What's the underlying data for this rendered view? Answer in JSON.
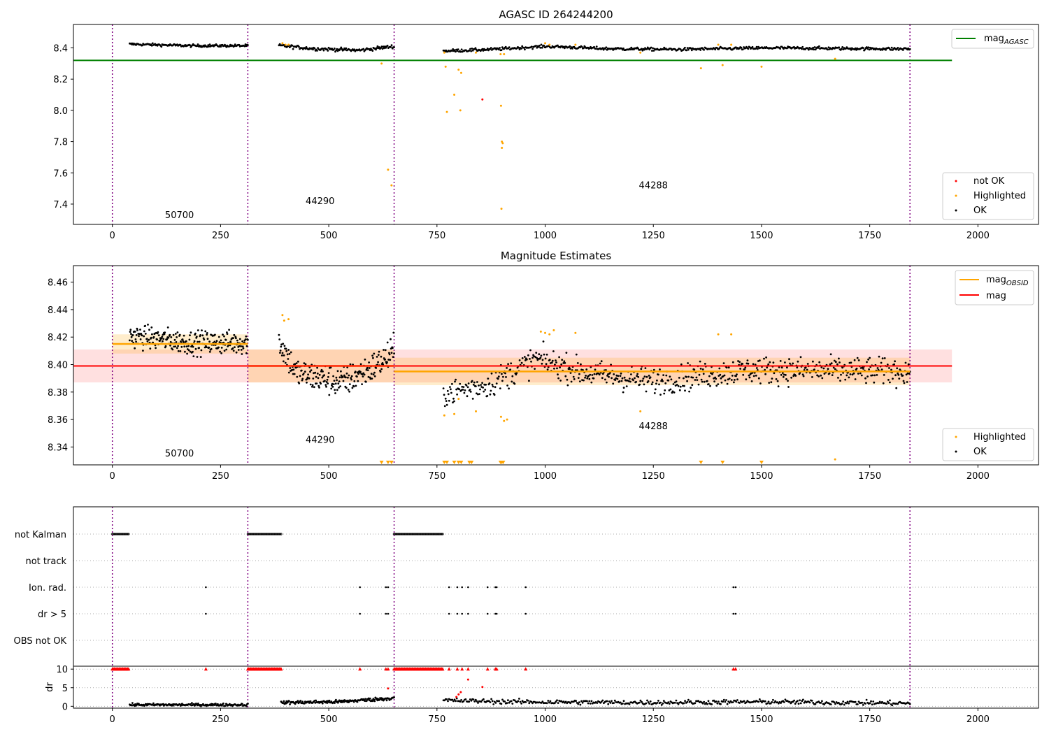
{
  "chart_data": [
    {
      "type": "scatter",
      "title": "AGASC ID 264244200",
      "xlim": [
        -90,
        2140
      ],
      "ylim": [
        7.27,
        8.55
      ],
      "xticks": [
        0,
        250,
        500,
        750,
        1000,
        1250,
        1500,
        1750,
        2000
      ],
      "yticks": [
        7.4,
        7.6,
        7.8,
        8.0,
        8.2,
        8.4
      ],
      "ytick_labels": [
        "7.4",
        "7.6",
        "7.8",
        "8.0",
        "8.2",
        "8.4"
      ],
      "grid": false,
      "legend_upper": {
        "placement": "top-right",
        "entries": [
          {
            "label": "mag",
            "subscript": "AGASC",
            "color": "#008000",
            "marker": "line"
          }
        ]
      },
      "legend_lower": {
        "placement": "bottom-right",
        "entries": [
          {
            "label": "not OK",
            "color": "#ff0000",
            "marker": "dot"
          },
          {
            "label": "Highlighted",
            "color": "#ffa500",
            "marker": "dot"
          },
          {
            "label": "OK",
            "color": "#000000",
            "marker": "dot"
          }
        ]
      },
      "hlines": [
        {
          "name": "mag_AGASC",
          "y": 8.32,
          "x": [
            -90,
            1940
          ],
          "color": "#008000"
        }
      ],
      "vlines": [
        0,
        313,
        651,
        1843
      ],
      "obsid_labels": [
        {
          "text": "50700",
          "x": 155,
          "y": 7.31
        },
        {
          "text": "44290",
          "x": 480,
          "y": 7.4
        },
        {
          "text": "44288",
          "x": 1250,
          "y": 7.5
        }
      ],
      "segments": [
        {
          "x": [
            40,
            313
          ],
          "level": 8.414,
          "wiggle": [
            [
              0.0,
              0.01
            ],
            [
              0.5,
              0.0
            ],
            [
              1.0,
              0.0
            ]
          ],
          "noise": 0.006,
          "n": 150
        },
        {
          "x": [
            385,
            651
          ],
          "level": 8.395,
          "wiggle": [
            [
              0.0,
              0.02
            ],
            [
              0.3,
              0.0
            ],
            [
              0.7,
              -0.01
            ],
            [
              1.0,
              0.015
            ]
          ],
          "noise": 0.008,
          "n": 140
        },
        {
          "x": [
            765,
            1843
          ],
          "level": 8.395,
          "wiggle": [
            [
              0.0,
              -0.015
            ],
            [
              0.1,
              -0.005
            ],
            [
              0.22,
              0.015
            ],
            [
              0.35,
              0.0
            ],
            [
              0.5,
              -0.005
            ],
            [
              0.7,
              0.005
            ],
            [
              1.0,
              -0.002
            ]
          ],
          "noise": 0.007,
          "n": 540
        }
      ],
      "highlighted_points": [
        [
          393,
          8.43
        ],
        [
          400,
          8.42
        ],
        [
          407,
          8.42
        ],
        [
          622,
          8.3
        ],
        [
          637,
          7.62
        ],
        [
          645,
          7.52
        ],
        [
          767,
          8.37
        ],
        [
          770,
          8.28
        ],
        [
          773,
          7.99
        ],
        [
          790,
          8.1
        ],
        [
          800,
          8.26
        ],
        [
          804,
          8.0
        ],
        [
          806,
          8.24
        ],
        [
          840,
          8.37
        ],
        [
          897,
          8.36
        ],
        [
          898,
          8.03
        ],
        [
          900,
          7.8
        ],
        [
          902,
          7.79
        ],
        [
          900,
          7.76
        ],
        [
          899,
          7.37
        ],
        [
          905,
          8.36
        ],
        [
          1000,
          8.43
        ],
        [
          1010,
          8.42
        ],
        [
          1070,
          8.42
        ],
        [
          1220,
          8.37
        ],
        [
          1360,
          8.27
        ],
        [
          1400,
          8.42
        ],
        [
          1410,
          8.29
        ],
        [
          1430,
          8.42
        ],
        [
          1500,
          8.28
        ],
        [
          1670,
          8.33
        ]
      ],
      "not_ok_points": [
        [
          855,
          8.07
        ]
      ]
    },
    {
      "type": "scatter",
      "title": "Magnitude Estimates",
      "xlim": [
        -90,
        2140
      ],
      "ylim": [
        8.327,
        8.472
      ],
      "xticks": [
        0,
        250,
        500,
        750,
        1000,
        1250,
        1500,
        1750,
        2000
      ],
      "yticks": [
        8.34,
        8.36,
        8.38,
        8.4,
        8.42,
        8.44,
        8.46
      ],
      "ytick_labels": [
        "8.34",
        "8.36",
        "8.38",
        "8.40",
        "8.42",
        "8.44",
        "8.46"
      ],
      "grid": false,
      "legend_upper": {
        "placement": "top-right",
        "entries": [
          {
            "label": "mag",
            "subscript": "OBSID",
            "color": "#ffa500",
            "marker": "line"
          },
          {
            "label": "mag",
            "subscript": "",
            "color": "#ff0000",
            "marker": "line"
          }
        ]
      },
      "legend_lower": {
        "placement": "bottom-right",
        "entries": [
          {
            "label": "Highlighted",
            "color": "#ffa500",
            "marker": "dot"
          },
          {
            "label": "OK",
            "color": "#000000",
            "marker": "dot"
          }
        ]
      },
      "mag_band": {
        "x": [
          -90,
          1940
        ],
        "y": 8.399,
        "err": 0.012,
        "color": "#ff0000"
      },
      "obsid_bands": [
        {
          "x": [
            0,
            313
          ],
          "y": 8.415,
          "err": 0.007
        },
        {
          "x": [
            313,
            651
          ],
          "y": 8.399,
          "err": 0.012
        },
        {
          "x": [
            651,
            1843
          ],
          "y": 8.395,
          "err": 0.01
        }
      ],
      "vlines": [
        0,
        313,
        651,
        1843
      ],
      "obsid_labels": [
        {
          "text": "50700",
          "x": 155,
          "y": 8.333
        },
        {
          "text": "44290",
          "x": 480,
          "y": 8.343
        },
        {
          "text": "44288",
          "x": 1250,
          "y": 8.353
        }
      ],
      "segments": [
        {
          "x": [
            40,
            313
          ],
          "level": 8.416,
          "wiggle": [
            [
              0.0,
              0.005
            ],
            [
              0.5,
              0.0
            ],
            [
              1.0,
              0.0
            ]
          ],
          "noise": 0.006,
          "n": 260
        },
        {
          "x": [
            385,
            651
          ],
          "level": 8.397,
          "wiggle": [
            [
              0.0,
              0.02
            ],
            [
              0.15,
              -0.003
            ],
            [
              0.55,
              -0.01
            ],
            [
              0.8,
              0.0
            ],
            [
              1.0,
              0.012
            ]
          ],
          "noise": 0.008,
          "n": 230
        },
        {
          "x": [
            765,
            1843
          ],
          "level": 8.394,
          "wiggle": [
            [
              0.0,
              -0.015
            ],
            [
              0.1,
              -0.008
            ],
            [
              0.2,
              0.01
            ],
            [
              0.3,
              0.0
            ],
            [
              0.45,
              -0.006
            ],
            [
              0.65,
              0.002
            ],
            [
              1.0,
              0.001
            ]
          ],
          "noise": 0.007,
          "n": 650
        }
      ],
      "highlighted_points": [
        [
          393,
          8.436
        ],
        [
          397,
          8.432
        ],
        [
          407,
          8.433
        ],
        [
          767,
          8.363
        ],
        [
          790,
          8.364
        ],
        [
          800,
          8.375
        ],
        [
          840,
          8.366
        ],
        [
          898,
          8.362
        ],
        [
          905,
          8.359
        ],
        [
          912,
          8.36
        ],
        [
          990,
          8.424
        ],
        [
          1000,
          8.423
        ],
        [
          1010,
          8.422
        ],
        [
          1020,
          8.425
        ],
        [
          1070,
          8.423
        ],
        [
          1220,
          8.366
        ],
        [
          1400,
          8.422
        ],
        [
          1430,
          8.422
        ],
        [
          1670,
          8.331
        ]
      ],
      "clipped_markers_x": [
        622,
        637,
        645,
        767,
        773,
        790,
        800,
        806,
        825,
        830,
        897,
        900,
        903,
        1360,
        1410,
        1500
      ]
    },
    {
      "type": "scatter",
      "title": "",
      "xlim": [
        -90,
        2140
      ],
      "xticks": [
        0,
        250,
        500,
        750,
        1000,
        1250,
        1500,
        1750,
        2000
      ],
      "flag_rows": [
        "not Kalman",
        "not track",
        "Ion. rad.",
        "dr > 5",
        "OBS not OK"
      ],
      "flags": {
        "not Kalman": [
          [
            0,
            38
          ],
          [
            313,
            390
          ],
          [
            651,
            765
          ]
        ],
        "not track": [],
        "Ion. rad.": [
          216,
          572,
          632,
          637,
          778,
          797,
          808,
          822,
          867,
          885,
          888,
          955,
          1435,
          1440
        ],
        "dr > 5": [
          216,
          572,
          632,
          637,
          778,
          797,
          808,
          822,
          867,
          885,
          888,
          955,
          1435,
          1440
        ],
        "OBS not OK": []
      },
      "dr": {
        "ylabel": "dr",
        "ylim": [
          -0.5,
          10.6
        ],
        "yticks": [
          0,
          5,
          10
        ],
        "ytick_labels": [
          "0",
          "5",
          "10"
        ],
        "clipped_x": [
          216,
          572,
          632,
          637,
          778,
          797,
          808,
          822,
          867,
          885,
          888,
          955,
          1435,
          1440
        ],
        "clipped_ranges": [
          [
            0,
            38
          ],
          [
            313,
            390
          ],
          [
            651,
            765
          ]
        ],
        "clip_value": 10,
        "red_points": [
          [
            637,
            4.8
          ],
          [
            795,
            2.5
          ],
          [
            800,
            3.2
          ],
          [
            805,
            3.8
          ],
          [
            822,
            7.2
          ],
          [
            855,
            5.2
          ]
        ],
        "segments": [
          {
            "x": [
              40,
              313
            ],
            "level": 0.4,
            "wiggle": [
              [
                0.0,
                0.0
              ],
              [
                1.0,
                0.0
              ]
            ],
            "noise": 0.25,
            "n": 170
          },
          {
            "x": [
              390,
              651
            ],
            "level": 1.2,
            "wiggle": [
              [
                0.0,
                -0.2
              ],
              [
                0.5,
                0.0
              ],
              [
                0.8,
                0.6
              ],
              [
                1.0,
                1.0
              ]
            ],
            "noise": 0.35,
            "n": 170
          },
          {
            "x": [
              765,
              1843
            ],
            "level": 1.0,
            "wiggle": [
              [
                0.0,
                0.6
              ],
              [
                0.15,
                0.2
              ],
              [
                0.4,
                0.0
              ],
              [
                0.7,
                0.2
              ],
              [
                1.0,
                -0.2
              ]
            ],
            "noise": 0.45,
            "n": 420
          }
        ]
      }
    }
  ]
}
